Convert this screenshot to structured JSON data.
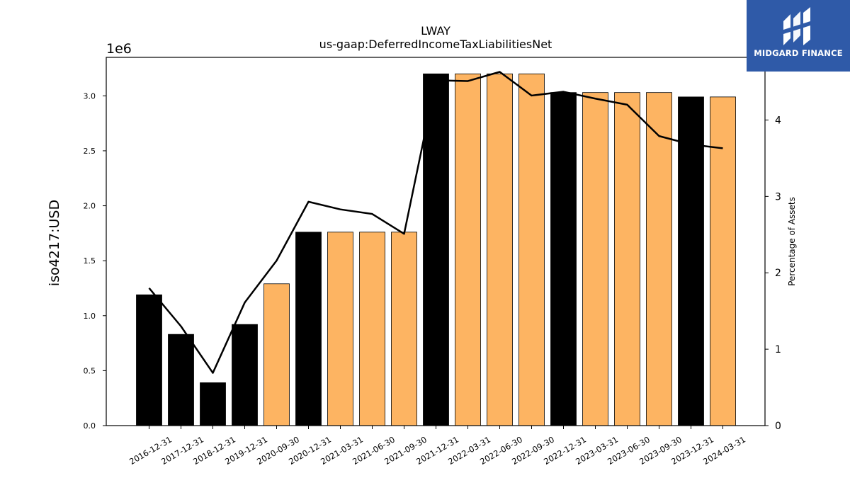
{
  "chart_data": {
    "type": "bar",
    "title": "LWAY",
    "subtitle": "us-gaap:DeferredIncomeTaxLiabilitiesNet",
    "ylabel": "iso4217:USD",
    "y2label": "Percentage of Assets",
    "y_scale_label": "1e6",
    "ylim": [
      0,
      3.35
    ],
    "y2lim": [
      0,
      4.82
    ],
    "yticks": [
      "0.0",
      "0.5",
      "1.0",
      "1.5",
      "2.0",
      "2.5",
      "3.0"
    ],
    "y2ticks": [
      "0",
      "1",
      "2",
      "3",
      "4"
    ],
    "categories": [
      "2016-12-31",
      "2017-12-31",
      "2018-12-31",
      "2019-12-31",
      "2020-09-30",
      "2020-12-31",
      "2021-03-31",
      "2021-06-30",
      "2021-09-30",
      "2021-12-31",
      "2022-03-31",
      "2022-06-30",
      "2022-09-30",
      "2022-12-31",
      "2023-03-31",
      "2023-06-30",
      "2023-09-30",
      "2023-12-31",
      "2024-03-31"
    ],
    "series": [
      {
        "type": "bar",
        "values": [
          1.19,
          0.83,
          0.39,
          0.92,
          1.29,
          1.76,
          1.76,
          1.76,
          1.76,
          3.2,
          3.2,
          3.2,
          3.2,
          3.03,
          3.03,
          3.03,
          3.03,
          2.99,
          2.99
        ],
        "annual": [
          true,
          true,
          true,
          true,
          false,
          true,
          false,
          false,
          false,
          true,
          false,
          false,
          false,
          true,
          false,
          false,
          false,
          true,
          false
        ]
      },
      {
        "type": "line",
        "axis": "right",
        "values": [
          1.8,
          1.3,
          0.69,
          1.61,
          2.16,
          2.93,
          2.83,
          2.77,
          2.51,
          4.52,
          4.51,
          4.63,
          4.32,
          4.37,
          4.28,
          4.2,
          3.79,
          3.68,
          3.63
        ]
      }
    ],
    "colors": {
      "annual": "#000000",
      "quarterly": "#fdb462",
      "line": "#000000"
    },
    "grid": false
  },
  "logo": {
    "text": "MIDGARD FINANCE"
  }
}
